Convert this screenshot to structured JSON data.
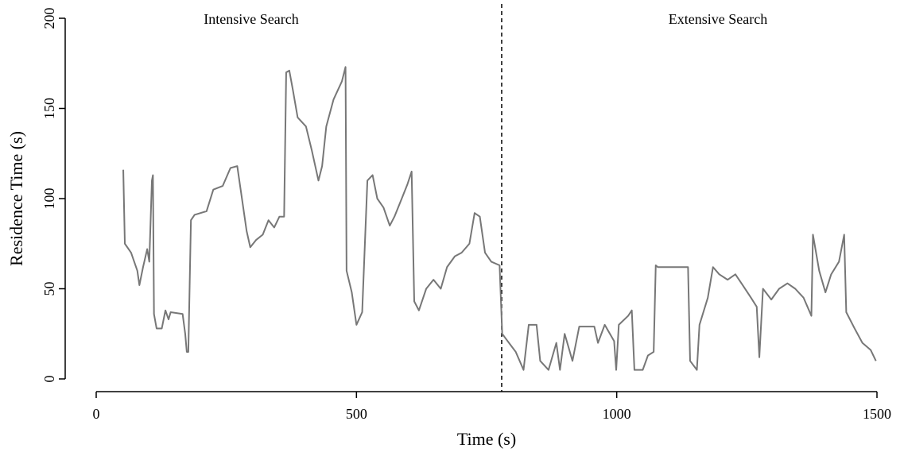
{
  "chart_data": {
    "type": "line",
    "x_label": "Time (s)",
    "y_label": "Residence Time (s)",
    "annotations": [
      "Intensive Search",
      "Extensive Search"
    ],
    "divider_x": 779,
    "xlim": [
      0,
      1500
    ],
    "xticks": [
      0,
      500,
      1000,
      1500
    ],
    "ylim": [
      0,
      200
    ],
    "yticks": [
      0,
      50,
      100,
      150,
      200
    ],
    "color": "#777777",
    "x": [
      52,
      55,
      67,
      79,
      83,
      90,
      98,
      102,
      107,
      109,
      111,
      116,
      126,
      133,
      139,
      143,
      166,
      171,
      174,
      177,
      182,
      189,
      212,
      225,
      243,
      258,
      271,
      276,
      289,
      296,
      307,
      320,
      331,
      342,
      352,
      361,
      365,
      371,
      378,
      387,
      403,
      414,
      427,
      434,
      442,
      456,
      472,
      479,
      481,
      491,
      500,
      511,
      521,
      531,
      540,
      552,
      564,
      573,
      587,
      598,
      606,
      611,
      620,
      634,
      648,
      662,
      674,
      689,
      702,
      717,
      727,
      737,
      747,
      759,
      775,
      780,
      793,
      806,
      821,
      831,
      846,
      853,
      869,
      884,
      891,
      900,
      915,
      928,
      957,
      964,
      977,
      995,
      999,
      1004,
      1022,
      1029,
      1034,
      1050,
      1060,
      1071,
      1075,
      1079,
      1137,
      1141,
      1154,
      1159,
      1175,
      1185,
      1197,
      1213,
      1228,
      1242,
      1258,
      1269,
      1274,
      1281,
      1297,
      1312,
      1328,
      1343,
      1359,
      1374,
      1377,
      1389,
      1401,
      1412,
      1427,
      1437,
      1441,
      1457,
      1472,
      1488,
      1498
    ],
    "values": [
      116,
      75,
      70,
      60,
      52,
      62,
      72,
      65,
      110,
      113,
      36,
      28,
      28,
      38,
      33,
      37,
      36,
      25,
      15,
      15,
      88,
      91,
      93,
      105,
      107,
      117,
      118,
      108,
      82,
      73,
      77,
      80,
      88,
      84,
      90,
      90,
      170,
      171,
      160,
      145,
      140,
      127,
      110,
      118,
      140,
      155,
      165,
      173,
      60,
      48,
      30,
      37,
      110,
      113,
      100,
      95,
      85,
      90,
      100,
      108,
      115,
      43,
      38,
      50,
      55,
      50,
      62,
      68,
      70,
      75,
      92,
      90,
      70,
      65,
      63,
      25,
      20,
      15,
      5,
      30,
      30,
      10,
      5,
      20,
      5,
      25,
      10,
      29,
      29,
      20,
      30,
      21,
      5,
      30,
      35,
      38,
      5,
      5,
      13,
      15,
      63,
      62,
      62,
      10,
      5,
      30,
      45,
      62,
      58,
      55,
      58,
      52,
      45,
      40,
      12,
      50,
      44,
      50,
      53,
      50,
      45,
      35,
      80,
      60,
      48,
      58,
      65,
      80,
      37,
      28,
      20,
      16,
      10
    ]
  }
}
